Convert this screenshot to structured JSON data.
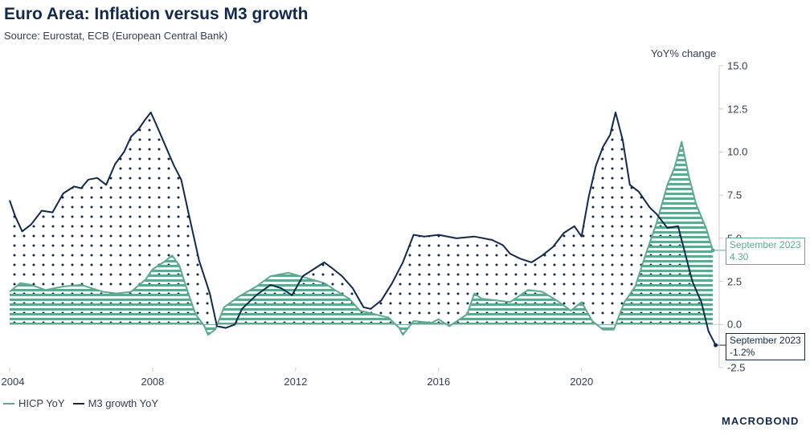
{
  "chart_data": {
    "type": "line",
    "title": "Euro Area: Inflation versus M3 growth",
    "subtitle": "Source: Eurostat, ECB (European Central Bank)",
    "ylabel": "YoY% change",
    "ylim": [
      -2.5,
      15.0
    ],
    "yticks": [
      "15.0",
      "12.5",
      "10.0",
      "7.5",
      "5.0",
      "2.5",
      "0.0",
      "-2.5"
    ],
    "xlim": [
      2004.0,
      2023.85
    ],
    "xticks": [
      "2004",
      "2008",
      "2012",
      "2016",
      "2020"
    ],
    "series": [
      {
        "name": "HICP YoY",
        "color": "#5fa98f",
        "points": [
          [
            2004.0,
            1.9
          ],
          [
            2004.3,
            2.4
          ],
          [
            2004.6,
            2.3
          ],
          [
            2005.0,
            2.0
          ],
          [
            2005.5,
            2.2
          ],
          [
            2006.0,
            2.3
          ],
          [
            2006.6,
            1.9
          ],
          [
            2007.0,
            1.8
          ],
          [
            2007.4,
            1.9
          ],
          [
            2007.8,
            2.6
          ],
          [
            2008.0,
            3.2
          ],
          [
            2008.3,
            3.6
          ],
          [
            2008.55,
            4.0
          ],
          [
            2008.75,
            3.4
          ],
          [
            2008.95,
            2.1
          ],
          [
            2009.2,
            0.6
          ],
          [
            2009.45,
            -0.1
          ],
          [
            2009.55,
            -0.6
          ],
          [
            2009.75,
            -0.3
          ],
          [
            2010.0,
            1.0
          ],
          [
            2010.4,
            1.6
          ],
          [
            2010.9,
            2.2
          ],
          [
            2011.3,
            2.8
          ],
          [
            2011.8,
            3.0
          ],
          [
            2012.3,
            2.7
          ],
          [
            2012.8,
            2.4
          ],
          [
            2013.1,
            2.0
          ],
          [
            2013.5,
            1.5
          ],
          [
            2013.8,
            0.8
          ],
          [
            2014.2,
            0.6
          ],
          [
            2014.6,
            0.4
          ],
          [
            2014.9,
            -0.2
          ],
          [
            2015.0,
            -0.6
          ],
          [
            2015.3,
            0.2
          ],
          [
            2015.8,
            0.1
          ],
          [
            2016.0,
            0.3
          ],
          [
            2016.3,
            -0.1
          ],
          [
            2016.8,
            0.6
          ],
          [
            2017.0,
            1.8
          ],
          [
            2017.2,
            1.5
          ],
          [
            2017.6,
            1.4
          ],
          [
            2018.0,
            1.3
          ],
          [
            2018.5,
            2.0
          ],
          [
            2018.9,
            1.9
          ],
          [
            2019.3,
            1.4
          ],
          [
            2019.7,
            0.8
          ],
          [
            2020.0,
            1.3
          ],
          [
            2020.3,
            0.2
          ],
          [
            2020.6,
            -0.3
          ],
          [
            2020.9,
            -0.3
          ],
          [
            2021.2,
            1.3
          ],
          [
            2021.5,
            2.2
          ],
          [
            2021.8,
            4.1
          ],
          [
            2022.1,
            5.9
          ],
          [
            2022.4,
            8.1
          ],
          [
            2022.6,
            9.1
          ],
          [
            2022.8,
            10.6
          ],
          [
            2023.0,
            8.6
          ],
          [
            2023.2,
            7.0
          ],
          [
            2023.5,
            5.5
          ],
          [
            2023.67,
            4.3
          ]
        ]
      },
      {
        "name": "M3 growth YoY",
        "color": "#13294b",
        "points": [
          [
            2004.0,
            7.2
          ],
          [
            2004.15,
            6.3
          ],
          [
            2004.35,
            5.4
          ],
          [
            2004.6,
            5.8
          ],
          [
            2004.9,
            6.6
          ],
          [
            2005.2,
            6.5
          ],
          [
            2005.5,
            7.6
          ],
          [
            2005.8,
            8.0
          ],
          [
            2006.0,
            7.9
          ],
          [
            2006.2,
            8.4
          ],
          [
            2006.45,
            8.5
          ],
          [
            2006.7,
            8.1
          ],
          [
            2006.95,
            9.3
          ],
          [
            2007.2,
            10.0
          ],
          [
            2007.4,
            10.9
          ],
          [
            2007.6,
            11.3
          ],
          [
            2007.8,
            11.9
          ],
          [
            2007.95,
            12.3
          ],
          [
            2008.1,
            11.6
          ],
          [
            2008.35,
            10.4
          ],
          [
            2008.6,
            9.2
          ],
          [
            2008.8,
            8.4
          ],
          [
            2009.0,
            6.5
          ],
          [
            2009.3,
            3.7
          ],
          [
            2009.6,
            1.8
          ],
          [
            2009.8,
            -0.1
          ],
          [
            2010.05,
            -0.2
          ],
          [
            2010.3,
            0.0
          ],
          [
            2010.5,
            0.9
          ],
          [
            2010.9,
            1.7
          ],
          [
            2011.3,
            2.3
          ],
          [
            2011.6,
            2.1
          ],
          [
            2011.9,
            1.7
          ],
          [
            2012.2,
            2.8
          ],
          [
            2012.5,
            3.2
          ],
          [
            2012.8,
            3.6
          ],
          [
            2013.0,
            3.3
          ],
          [
            2013.3,
            2.8
          ],
          [
            2013.6,
            2.1
          ],
          [
            2013.9,
            1.0
          ],
          [
            2014.1,
            0.9
          ],
          [
            2014.4,
            1.4
          ],
          [
            2014.7,
            2.4
          ],
          [
            2015.0,
            3.6
          ],
          [
            2015.3,
            5.2
          ],
          [
            2015.6,
            5.1
          ],
          [
            2016.0,
            5.2
          ],
          [
            2016.5,
            5.0
          ],
          [
            2017.0,
            5.1
          ],
          [
            2017.5,
            4.9
          ],
          [
            2017.8,
            4.6
          ],
          [
            2018.0,
            4.1
          ],
          [
            2018.3,
            3.8
          ],
          [
            2018.6,
            3.6
          ],
          [
            2018.9,
            4.0
          ],
          [
            2019.2,
            4.5
          ],
          [
            2019.5,
            5.3
          ],
          [
            2019.8,
            5.7
          ],
          [
            2020.0,
            5.1
          ],
          [
            2020.2,
            7.4
          ],
          [
            2020.4,
            9.2
          ],
          [
            2020.6,
            10.3
          ],
          [
            2020.8,
            11.0
          ],
          [
            2020.95,
            12.3
          ],
          [
            2021.15,
            10.7
          ],
          [
            2021.35,
            8.1
          ],
          [
            2021.6,
            7.7
          ],
          [
            2021.9,
            6.8
          ],
          [
            2022.1,
            6.4
          ],
          [
            2022.4,
            5.6
          ],
          [
            2022.7,
            5.7
          ],
          [
            2022.9,
            4.1
          ],
          [
            2023.1,
            2.5
          ],
          [
            2023.35,
            1.3
          ],
          [
            2023.55,
            -0.4
          ],
          [
            2023.75,
            -1.2
          ]
        ]
      }
    ],
    "annotations": [
      {
        "series": "HICP YoY",
        "label": "September 2023",
        "value": "4.30"
      },
      {
        "series": "M3 growth YoY",
        "label": "September 2023",
        "value": "-1.2%"
      }
    ],
    "legend": "bottom-left"
  },
  "brand": {
    "logo_text": "MACROBOND"
  }
}
